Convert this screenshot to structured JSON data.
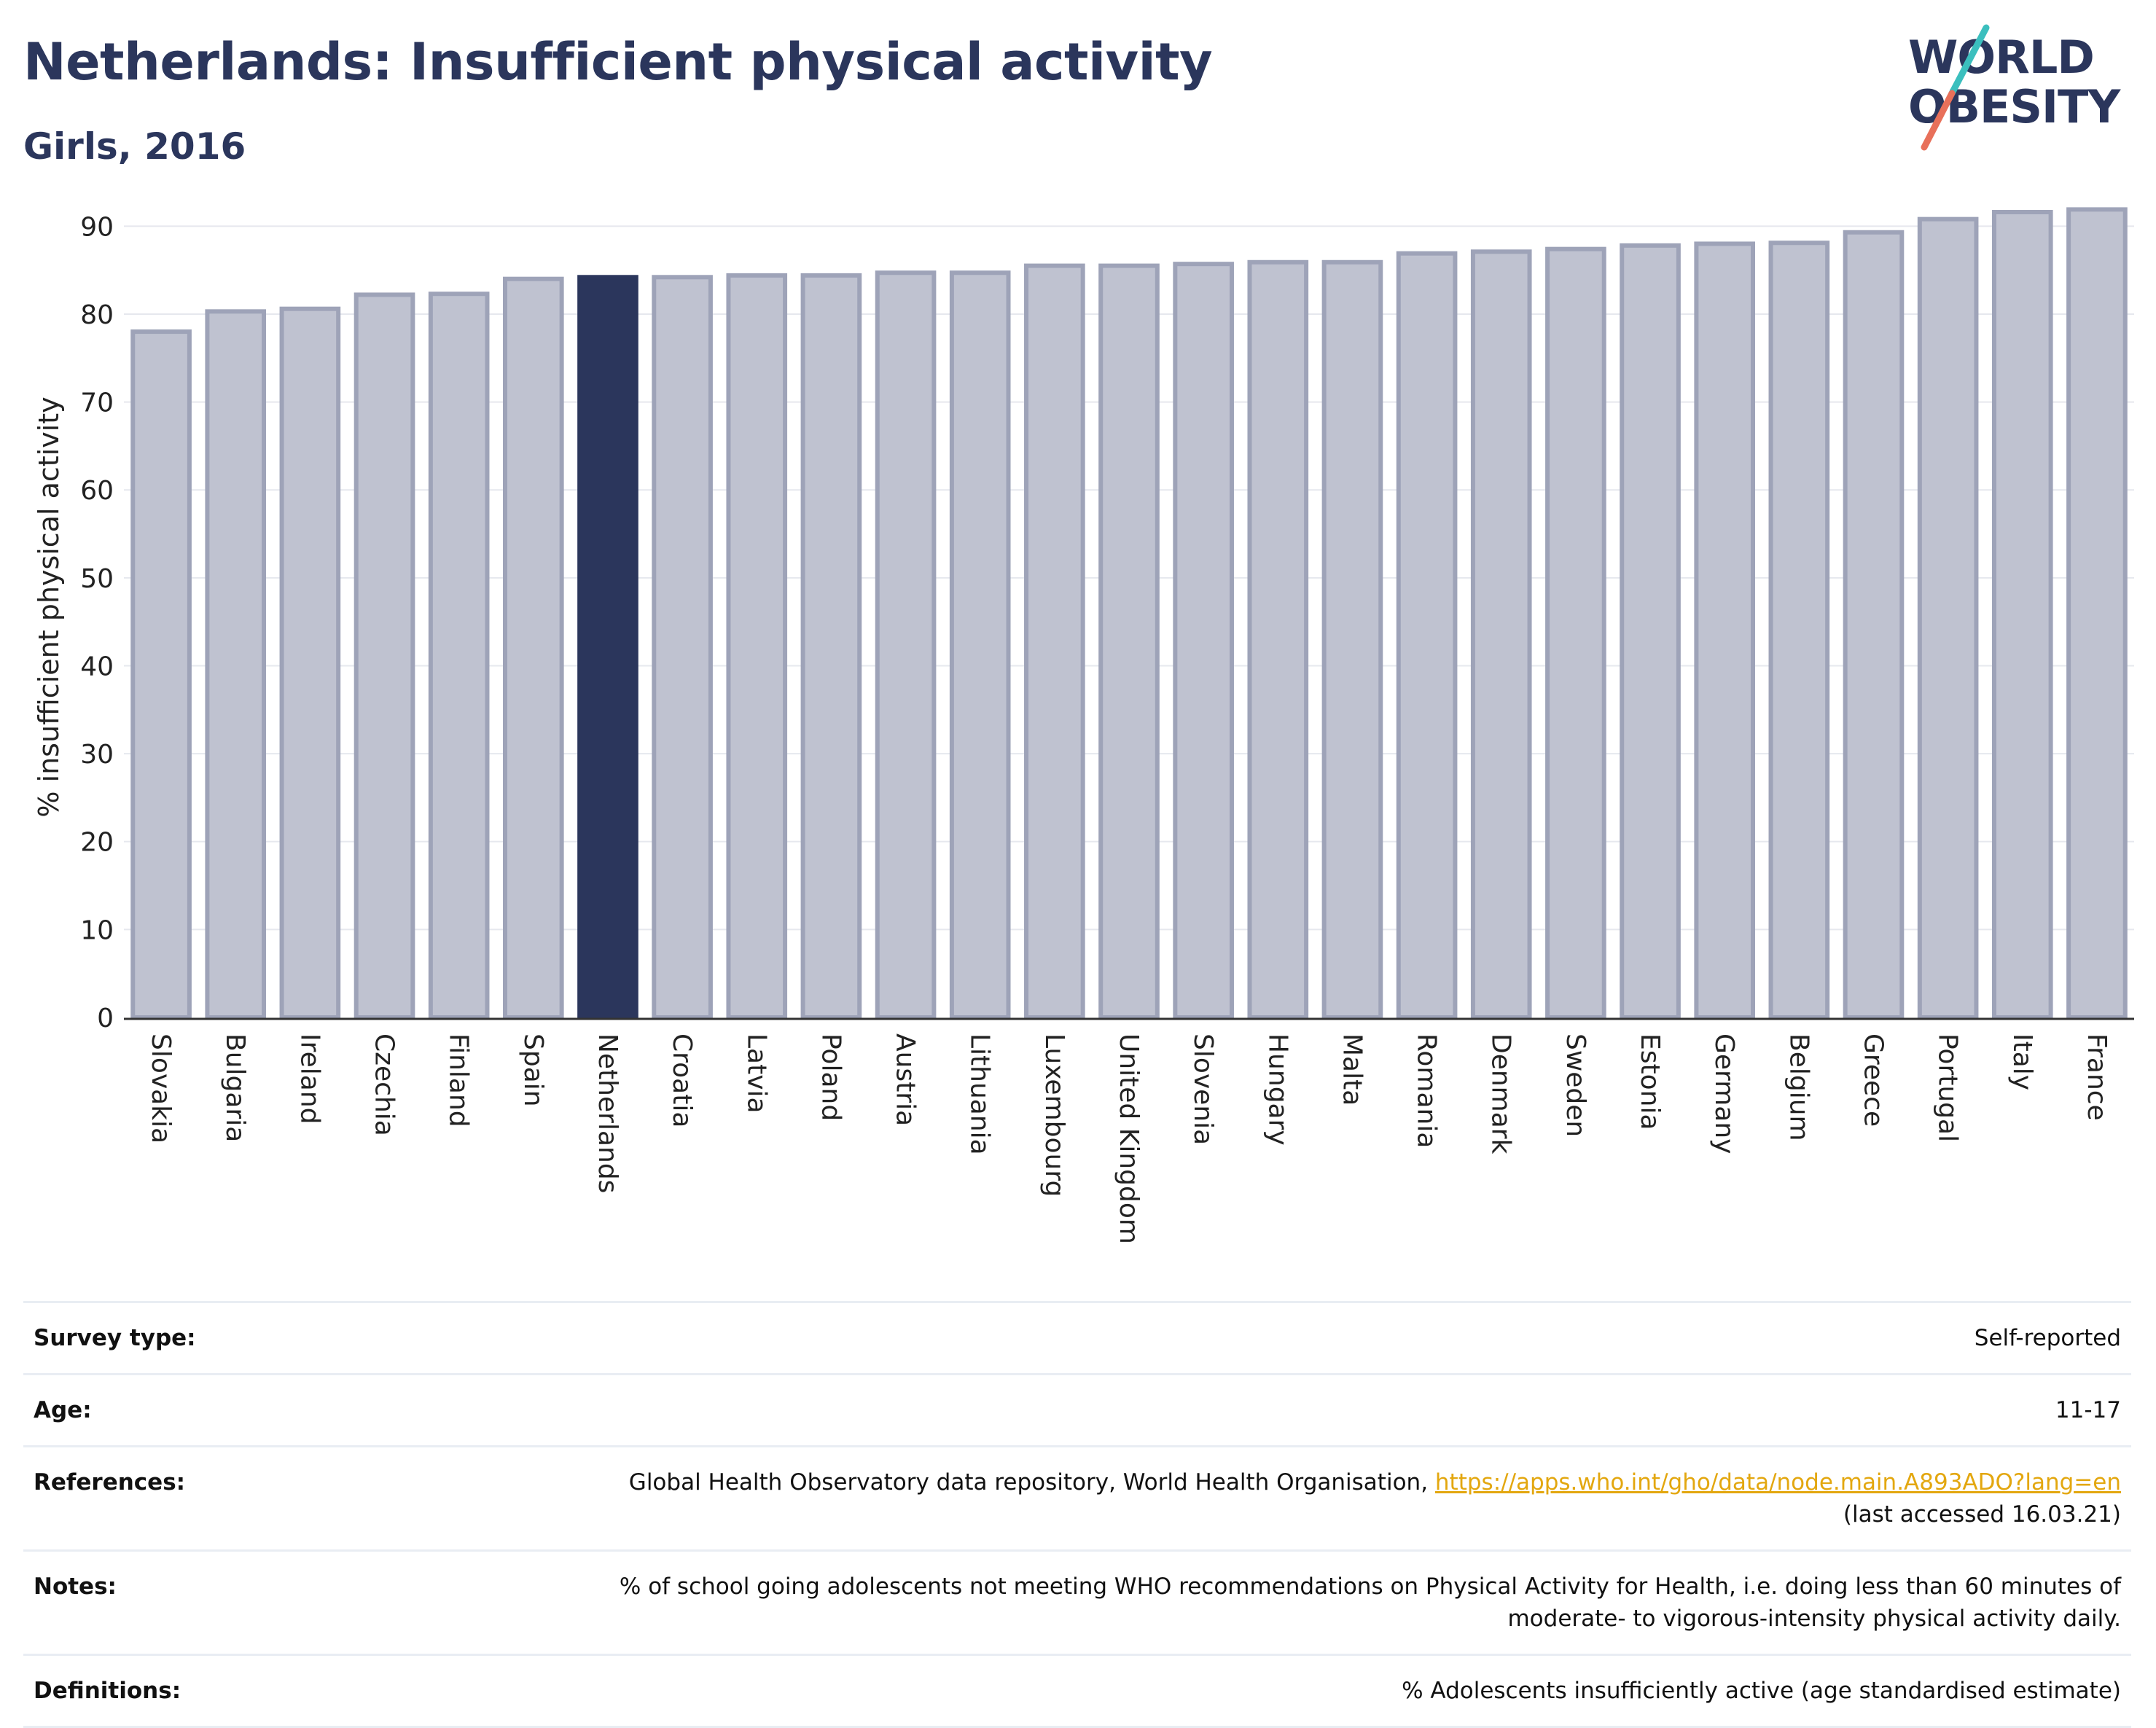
{
  "header": {
    "title": "Netherlands: Insufficient physical activity",
    "subtitle": "Girls, 2016"
  },
  "logo": {
    "line1": "WORLD",
    "line2": "OBESITY",
    "accent_colors": [
      "#3bbfbe",
      "#e8705a"
    ],
    "text_color": "#2b365c"
  },
  "chart_data": {
    "type": "bar",
    "ylabel": "% insufficient physical activity",
    "ylim": [
      0,
      95
    ],
    "yticks": [
      0,
      10,
      20,
      30,
      40,
      50,
      60,
      70,
      80,
      90
    ],
    "grid": true,
    "highlight": "Netherlands",
    "colors": {
      "bar": "#bfc2d0",
      "bar_stroke": "#9ea3b8",
      "highlight": "#2b365c"
    },
    "categories": [
      "Slovakia",
      "Bulgaria",
      "Ireland",
      "Czechia",
      "Finland",
      "Spain",
      "Netherlands",
      "Croatia",
      "Latvia",
      "Poland",
      "Austria",
      "Lithuania",
      "Luxembourg",
      "United Kingdom",
      "Slovenia",
      "Hungary",
      "Malta",
      "Romania",
      "Denmark",
      "Sweden",
      "Estonia",
      "Germany",
      "Belgium",
      "Greece",
      "Portugal",
      "Italy",
      "France"
    ],
    "values": [
      78.0,
      80.3,
      80.6,
      82.2,
      82.3,
      84.0,
      84.2,
      84.2,
      84.4,
      84.4,
      84.7,
      84.7,
      85.5,
      85.5,
      85.7,
      85.9,
      85.9,
      86.9,
      87.1,
      87.4,
      87.8,
      88.0,
      88.1,
      89.3,
      90.8,
      91.6,
      91.9
    ]
  },
  "meta": [
    {
      "key": "Survey type:",
      "value": "Self-reported"
    },
    {
      "key": "Age:",
      "value": "11-17"
    },
    {
      "key": "References:",
      "value": "Global Health Observatory data repository, World Health Organisation, ",
      "link": "https://apps.who.int/gho/data/node.main.A893ADO?lang=en",
      "value2": "(last accessed 16.03.21)"
    },
    {
      "key": "Notes:",
      "value": "% of school going adolescents not meeting WHO recommendations on Physical Activity for Health, i.e. doing less than 60 minutes of",
      "value2": "moderate- to vigorous-intensity physical activity daily."
    },
    {
      "key": "Definitions:",
      "value": "% Adolescents insufficiently active (age standardised estimate)"
    }
  ]
}
